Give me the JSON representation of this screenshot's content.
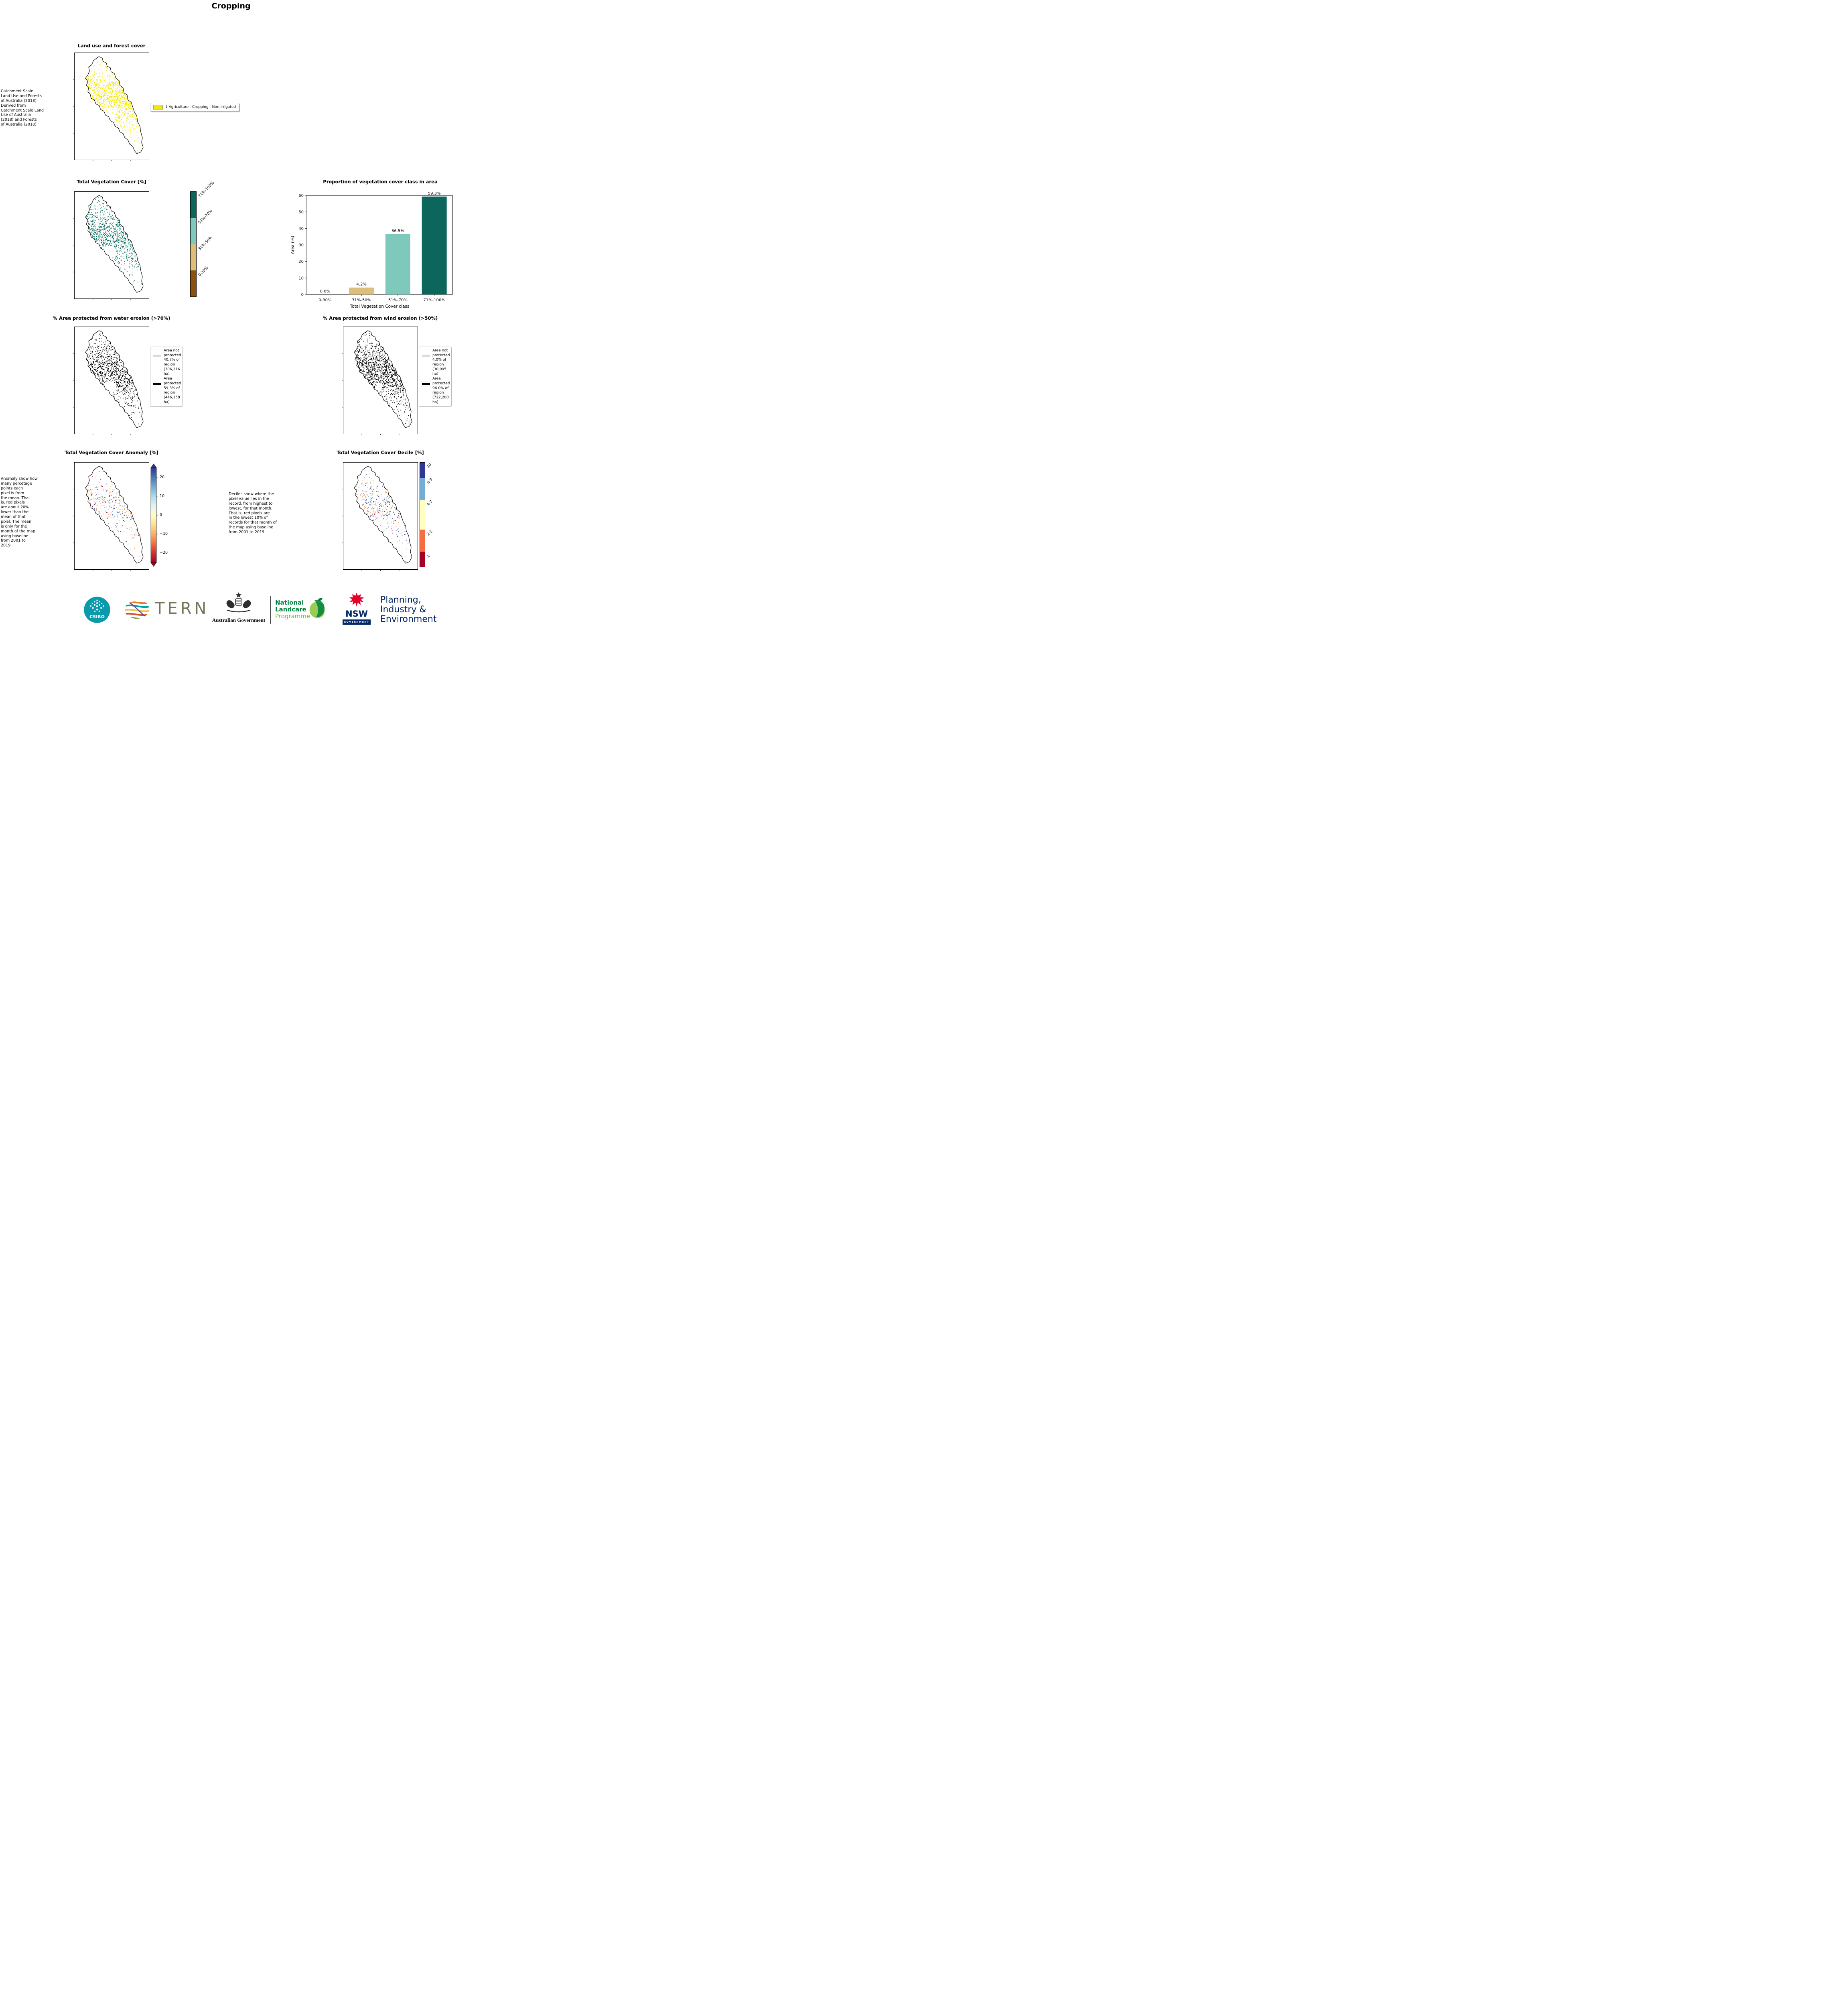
{
  "page_title": "Cropping",
  "landuse": {
    "title": "Land use and forest cover",
    "note": " Catchment Scale\nLand Use and Forests\nof Australia (2018)\nDerived from\nCatchment Scale Land\nUse of Australia\n(2018) and Forests\nof Australia (2018)",
    "legend_label": "1 Agriculture - Cropping - Non-irrigated",
    "pixel_color": "#f2e60e"
  },
  "vegcover": {
    "title": "Total Vegetation Cover [%]",
    "colorbar": [
      {
        "label": "71%-100%",
        "color": "#0c665b"
      },
      {
        "label": "51%-70%",
        "color": "#7ec8bc"
      },
      {
        "label": "31%-50%",
        "color": "#ddbe7a"
      },
      {
        "label": "0-30%",
        "color": "#8a510f"
      }
    ],
    "pixel_colors": [
      "#0c665b",
      "#3f9184",
      "#7ec8bc"
    ]
  },
  "chart_data": {
    "type": "bar",
    "title": "Proportion of vegetation cover class in area",
    "categories": [
      "0-30%",
      "31%-50%",
      "51%-70%",
      "71%-100%"
    ],
    "values": [
      0.0,
      4.2,
      36.5,
      59.3
    ],
    "value_labels": [
      "0.0%",
      "4.2%",
      "36.5%",
      "59.3%"
    ],
    "bar_colors": [
      "#8a510f",
      "#ddbe7a",
      "#7ec8bc",
      "#0c665b"
    ],
    "xlabel": "Total Vegetation Cover class",
    "ylabel": "Area (%)",
    "ylim": [
      0,
      60
    ],
    "yticks": [
      0,
      10,
      20,
      30,
      40,
      50,
      60
    ]
  },
  "water_erosion": {
    "title": "% Area protected from water erosion (>70%)",
    "pixel_color": "#000000",
    "legend": [
      {
        "label": "Area not\nprotected\n40.7% of\nregion\n(306,216\nha)",
        "color": "#d9d9d9"
      },
      {
        "label": "Area\nprotected\n59.3% of\nregion\n(446,158\nha)",
        "color": "#000000"
      }
    ]
  },
  "wind_erosion": {
    "title": "% Area protected from wind erosion (>50%)",
    "pixel_color": "#000000",
    "legend": [
      {
        "label": "Area not\nprotected\n4.0% of\nregion\n(30,095\nha)",
        "color": "#d9d9d9"
      },
      {
        "label": "Area\nprotected\n96.0% of\nregion\n(722,280\nha)",
        "color": "#000000"
      }
    ]
  },
  "anomaly": {
    "title": "Total Vegetation Cover Anomaly [%]",
    "note": "Anomaly show how\nmany percetage\npoints each\npixel is from\nthe mean. That\nis, red pixels\nare about 20%\nlower than the\nmean of that\npixel. The mean\nis only for the\nmonth of the map\nusing baseline\nfrom 2001 to\n2019.",
    "colorbar_ticks": [
      "20",
      "10",
      "0",
      "−10",
      "−20"
    ],
    "gradient": [
      "#313695",
      "#4575b4",
      "#74add1",
      "#abd9e9",
      "#e0f3f8",
      "#ffffbf",
      "#fee090",
      "#fdae61",
      "#f46d43",
      "#d73027",
      "#a50026"
    ],
    "pixel_colors": [
      "#313695",
      "#4575b4",
      "#74add1",
      "#fee090",
      "#fdae61",
      "#f46d43",
      "#a50026"
    ]
  },
  "decile": {
    "title": "Total Vegetation Cover Decile [%]",
    "note": "Deciles show where the\npixel value lies in the\nrecord, from highest to\nlowest, for that month.\nThat is, red pixels are\nin the lowest 10% of\nrecords for that month of\nthe map using baseline\nfrom 2001 to 2019.",
    "colorbar": [
      {
        "label": "10",
        "color": "#313695",
        "frac": 0.15
      },
      {
        "label": "8-9",
        "color": "#74add1",
        "frac": 0.21
      },
      {
        "label": "4-7",
        "color": "#ffffbf",
        "frac": 0.28
      },
      {
        "label": "2-3",
        "color": "#f46d43",
        "frac": 0.21
      },
      {
        "label": "1",
        "color": "#a50026",
        "frac": 0.15
      }
    ],
    "pixel_colors": [
      "#313695",
      "#74add1",
      "#ffffbf",
      "#fdae61",
      "#f46d43",
      "#a50026"
    ]
  },
  "logos": {
    "csiro_label": "CSIRO",
    "tern_label": "TERN",
    "aus_gov_label": "Australian Government",
    "landcare_line1": "National",
    "landcare_line2": "Landcare",
    "landcare_line3": "Programme",
    "nsw_label": "NSW",
    "nsw_sub_label": "GOVERNMENT",
    "dpie_label": "Planning,\nIndustry &\nEnvironment",
    "colors": {
      "csiro_teal": "#0b99ac",
      "landcare_green": "#00843d",
      "landcare_light_green": "#78be20",
      "nsw_red": "#e4002b",
      "nsw_navy": "#002664",
      "tern_text": "#73765a"
    }
  }
}
